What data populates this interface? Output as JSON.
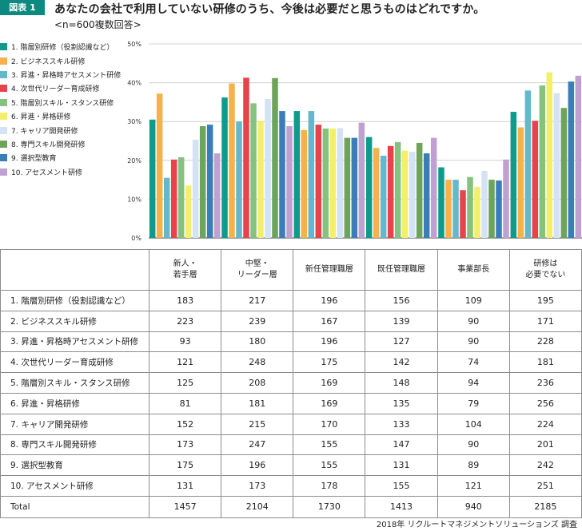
{
  "header": {
    "badge": "図表 1",
    "title": "あなたの会社で利用していない研修のうち、今後は必要だと思うものはどれですか。",
    "subtitle": "<n=600複数回答>"
  },
  "colors": [
    "#0f9a8c",
    "#f6b04c",
    "#64b8cc",
    "#e8434b",
    "#83c27f",
    "#f4ef6a",
    "#d4e2f5",
    "#6da35a",
    "#3b7db8",
    "#c0a0d0"
  ],
  "chart_data": {
    "type": "bar",
    "categories": [
      "新人・若手層",
      "中堅・リーダー層",
      "新任管理職層",
      "既任管理職層",
      "事業部長",
      "研修は必要でない"
    ],
    "series": [
      {
        "name": "1. 階層別研修（役割認識など）",
        "values": [
          30.5,
          36.2,
          32.7,
          26.0,
          18.2,
          32.5
        ]
      },
      {
        "name": "2. ビジネススキル研修",
        "values": [
          37.2,
          39.8,
          27.8,
          23.2,
          15.0,
          28.5
        ]
      },
      {
        "name": "3. 昇進・昇格時アセスメント研修",
        "values": [
          15.5,
          30.0,
          32.7,
          21.2,
          15.0,
          38.0
        ]
      },
      {
        "name": "4. 次世代リーダー育成研修",
        "values": [
          20.2,
          41.3,
          29.2,
          23.7,
          12.3,
          30.2
        ]
      },
      {
        "name": "5. 階層別スキル・スタンス研修",
        "values": [
          20.8,
          34.7,
          28.2,
          24.7,
          15.7,
          39.3
        ]
      },
      {
        "name": "6. 昇進・昇格研修",
        "values": [
          13.5,
          30.2,
          28.2,
          22.5,
          13.2,
          42.7
        ]
      },
      {
        "name": "7. キャリア開発研修",
        "values": [
          25.3,
          35.8,
          28.3,
          22.2,
          17.3,
          37.3
        ]
      },
      {
        "name": "8. 専門スキル開発研修",
        "values": [
          28.8,
          41.2,
          25.8,
          24.5,
          15.0,
          33.5
        ]
      },
      {
        "name": "9. 選択型教育",
        "values": [
          29.2,
          32.7,
          25.8,
          21.8,
          14.8,
          40.3
        ]
      },
      {
        "name": "10. アセスメント研修",
        "values": [
          21.8,
          28.8,
          29.7,
          25.8,
          20.2,
          41.8
        ]
      }
    ],
    "ylim": [
      0,
      50
    ],
    "yticks": [
      "0%",
      "10%",
      "20%",
      "30%",
      "40%",
      "50%"
    ],
    "grid": true,
    "legend": "left"
  },
  "table": {
    "headers": [
      "新人・\n若手層",
      "中堅・\nリーダー層",
      "新任管理職層",
      "既任管理職層",
      "事業部長",
      "研修は\n必要でない"
    ],
    "rows": [
      {
        "label": "1. 階層別研修（役割認識など）",
        "values": [
          "183",
          "217",
          "196",
          "156",
          "109",
          "195"
        ]
      },
      {
        "label": "2. ビジネススキル研修",
        "values": [
          "223",
          "239",
          "167",
          "139",
          "90",
          "171"
        ]
      },
      {
        "label": "3. 昇進・昇格時アセスメント研修",
        "values": [
          "93",
          "180",
          "196",
          "127",
          "90",
          "228"
        ]
      },
      {
        "label": "4. 次世代リーダー育成研修",
        "values": [
          "121",
          "248",
          "175",
          "142",
          "74",
          "181"
        ]
      },
      {
        "label": "5. 階層別スキル・スタンス研修",
        "values": [
          "125",
          "208",
          "169",
          "148",
          "94",
          "236"
        ]
      },
      {
        "label": "6. 昇進・昇格研修",
        "values": [
          "81",
          "181",
          "169",
          "135",
          "79",
          "256"
        ]
      },
      {
        "label": "7. キャリア開発研修",
        "values": [
          "152",
          "215",
          "170",
          "133",
          "104",
          "224"
        ]
      },
      {
        "label": "8. 専門スキル開発研修",
        "values": [
          "173",
          "247",
          "155",
          "147",
          "90",
          "201"
        ]
      },
      {
        "label": "9. 選択型教育",
        "values": [
          "175",
          "196",
          "155",
          "131",
          "89",
          "242"
        ]
      },
      {
        "label": "10. アセスメント研修",
        "values": [
          "131",
          "173",
          "178",
          "155",
          "121",
          "251"
        ]
      }
    ],
    "total": {
      "label": "Total",
      "values": [
        "1457",
        "2104",
        "1730",
        "1413",
        "940",
        "2185"
      ]
    }
  },
  "source": "2018年 リクルートマネジメントソリューションズ 調査"
}
